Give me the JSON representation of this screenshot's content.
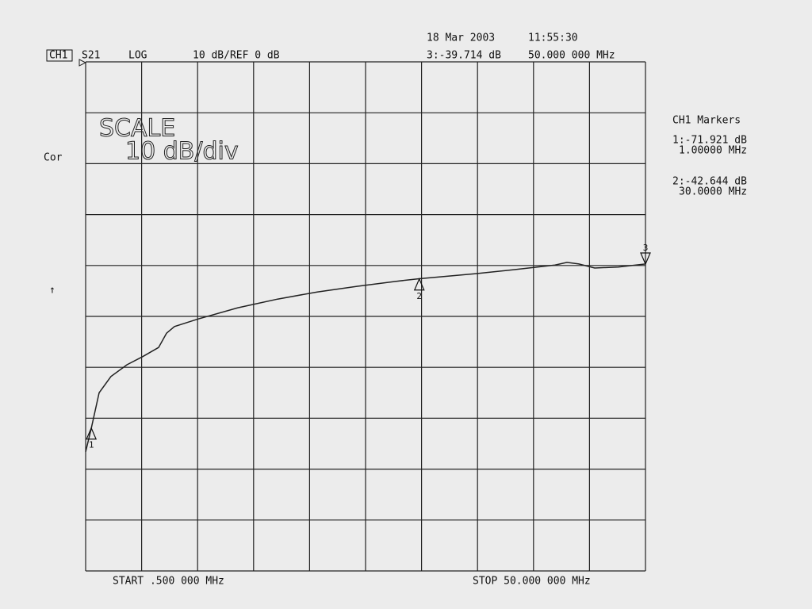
{
  "chart_data": {
    "type": "line",
    "channel": "CH1",
    "parameter": "S21",
    "format": "LOG",
    "scale_ref": "10 dB/REF 0 dB",
    "date": "18 Mar 2003",
    "time": "11:55:30",
    "correction": "Cor",
    "ref_arrow": "↑",
    "scale_title": "SCALE",
    "scale_value": "10 dB/div",
    "start_label": "START  .500 000 MHz",
    "stop_label": "STOP  50.000 000 MHz",
    "markers_title": "CH1 Markers",
    "color": "#222222",
    "grid": true,
    "xlim": [
      0.5,
      50
    ],
    "ylim": [
      -100,
      0
    ],
    "xticks": [
      0.5,
      5.45,
      10.4,
      15.35,
      20.3,
      25.25,
      30.2,
      35.15,
      40.1,
      45.05,
      50
    ],
    "yticks": [
      0,
      -10,
      -20,
      -30,
      -40,
      -50,
      -60,
      -70,
      -80,
      -90,
      -100
    ],
    "x": [
      0.5,
      1.0,
      1.69,
      2.74,
      4.15,
      5.55,
      6.95,
      7.65,
      8.35,
      10.46,
      13.96,
      17.47,
      20.97,
      24.48,
      27.98,
      30.0,
      34.99,
      38.5,
      42.0,
      43.06,
      44.11,
      45.51,
      47.6,
      50.0
    ],
    "series": [
      {
        "name": "S21",
        "values": [
          -76.6,
          -72.0,
          -65.0,
          -61.8,
          -59.5,
          -57.9,
          -56.1,
          -53.3,
          -52.0,
          -50.5,
          -48.3,
          -46.6,
          -45.2,
          -44.1,
          -43.1,
          -42.6,
          -41.6,
          -40.8,
          -39.9,
          -39.4,
          -39.7,
          -40.5,
          -40.3,
          -39.7
        ]
      }
    ],
    "markers": [
      {
        "label": "1",
        "x": 1.0,
        "y": -71.921,
        "readout": "1:-71.921 dB",
        "freq_text": "1.00000 MHz"
      },
      {
        "label": "2",
        "x": 30.0,
        "y": -42.644,
        "readout": "2:-42.644 dB",
        "freq_text": "30.0000 MHz"
      },
      {
        "label": "3",
        "x": 50.0,
        "y": -39.714,
        "readout": "3:-39.714 dB",
        "freq_text": "50.000 000 MHz"
      }
    ]
  }
}
